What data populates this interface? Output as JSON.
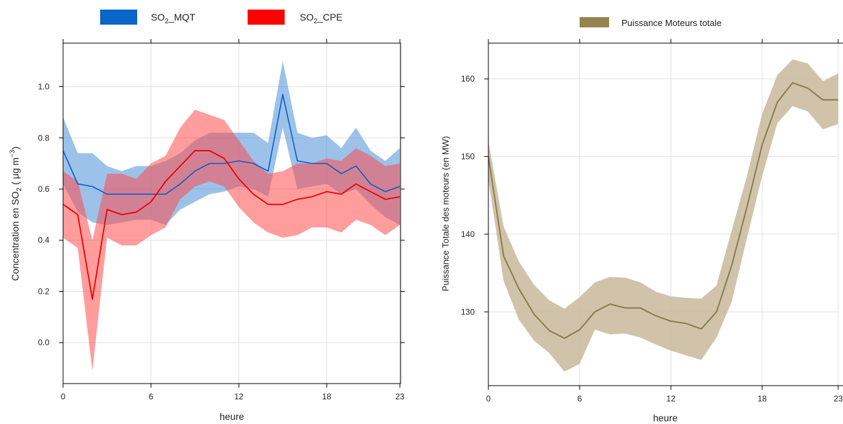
{
  "colors": {
    "mqt_band": "#4a90d9",
    "mqt_line": "#0a5cc7",
    "cpe_band": "#ff4d4d",
    "cpe_line": "#ee0000",
    "puissance_band": "#c8b89a",
    "puissance_line": "#8b7b4f",
    "puissance_legend": "#958451",
    "grid": "#e0e0e0"
  },
  "chart_data": [
    {
      "type": "area",
      "legend": {
        "placement": "top",
        "entries": [
          {
            "label_main": "SO",
            "label_sub": "2",
            "label_rest": "_MQT",
            "color": "#0a66c8"
          },
          {
            "label_main": "SO",
            "label_sub": "2",
            "label_rest": "_CPE",
            "color": "#ff0000"
          }
        ]
      },
      "xlabel": "heure",
      "ylabel": {
        "main": "Concentration en SO",
        "sub": "2",
        "rest": " ( μg m",
        "sup": "−3",
        "end": ")"
      },
      "xlim": [
        0,
        23
      ],
      "ylim": [
        -0.16,
        1.17
      ],
      "xticks": [
        "0",
        "6",
        "12",
        "18",
        "23"
      ],
      "xtick_values": [
        0,
        6,
        12,
        18,
        23
      ],
      "yticks": [
        "0.0",
        "0.2",
        "0.4",
        "0.6",
        "0.8",
        "1.0"
      ],
      "ytick_values": [
        0.0,
        0.2,
        0.4,
        0.6,
        0.8,
        1.0
      ],
      "grid": true,
      "x": [
        0,
        1,
        2,
        3,
        4,
        5,
        6,
        7,
        8,
        9,
        10,
        11,
        12,
        13,
        14,
        15,
        16,
        17,
        18,
        19,
        20,
        21,
        22,
        23
      ],
      "series": [
        {
          "name": "SO2_MQT",
          "values": [
            0.75,
            0.62,
            0.61,
            0.58,
            0.58,
            0.58,
            0.58,
            0.58,
            0.62,
            0.67,
            0.7,
            0.7,
            0.71,
            0.7,
            0.67,
            0.97,
            0.71,
            0.7,
            0.7,
            0.66,
            0.69,
            0.62,
            0.59,
            0.61
          ],
          "lower": [
            0.62,
            0.51,
            0.47,
            0.46,
            0.47,
            0.48,
            0.48,
            0.46,
            0.52,
            0.55,
            0.58,
            0.59,
            0.61,
            0.6,
            0.57,
            0.84,
            0.6,
            0.61,
            0.62,
            0.58,
            0.6,
            0.54,
            0.49,
            0.46
          ],
          "upper": [
            0.88,
            0.74,
            0.74,
            0.69,
            0.67,
            0.69,
            0.69,
            0.71,
            0.74,
            0.79,
            0.82,
            0.82,
            0.82,
            0.82,
            0.78,
            1.1,
            0.82,
            0.8,
            0.81,
            0.76,
            0.84,
            0.75,
            0.71,
            0.76
          ]
        },
        {
          "name": "SO2_CPE",
          "values": [
            0.54,
            0.5,
            0.17,
            0.52,
            0.5,
            0.51,
            0.55,
            0.63,
            0.69,
            0.75,
            0.75,
            0.72,
            0.64,
            0.58,
            0.54,
            0.54,
            0.56,
            0.57,
            0.59,
            0.58,
            0.62,
            0.59,
            0.56,
            0.57
          ],
          "lower": [
            0.41,
            0.37,
            -0.11,
            0.41,
            0.38,
            0.38,
            0.42,
            0.45,
            0.56,
            0.61,
            0.63,
            0.61,
            0.53,
            0.47,
            0.43,
            0.41,
            0.42,
            0.45,
            0.45,
            0.43,
            0.48,
            0.46,
            0.42,
            0.46
          ],
          "upper": [
            0.67,
            0.63,
            0.4,
            0.66,
            0.66,
            0.64,
            0.7,
            0.73,
            0.84,
            0.91,
            0.89,
            0.87,
            0.79,
            0.71,
            0.66,
            0.67,
            0.7,
            0.7,
            0.72,
            0.71,
            0.76,
            0.73,
            0.69,
            0.7
          ]
        }
      ]
    },
    {
      "type": "area",
      "legend": {
        "placement": "top",
        "entries": [
          {
            "label": "Puissance Moteurs totale",
            "color": "#958451"
          }
        ]
      },
      "xlabel": "heure",
      "ylabel": "Puissance Totale des moteurs (en MW)",
      "xlim": [
        0,
        23
      ],
      "ylim": [
        120.5,
        164.6
      ],
      "xticks": [
        "0",
        "6",
        "12",
        "18",
        "23"
      ],
      "xtick_values": [
        0,
        6,
        12,
        18,
        23
      ],
      "yticks": [
        "130",
        "140",
        "150",
        "160"
      ],
      "ytick_values": [
        130,
        140,
        150,
        160
      ],
      "grid": true,
      "x": [
        0,
        1,
        2,
        3,
        4,
        5,
        6,
        7,
        8,
        9,
        10,
        11,
        12,
        13,
        14,
        15,
        16,
        17,
        18,
        19,
        20,
        21,
        22,
        23
      ],
      "series": [
        {
          "name": "Puissance Moteurs totale",
          "values": [
            150.0,
            137.2,
            133.0,
            129.7,
            127.6,
            126.6,
            127.7,
            130.0,
            131.0,
            130.5,
            130.5,
            129.5,
            128.8,
            128.5,
            127.8,
            130.0,
            136.0,
            143.5,
            151.5,
            157.0,
            159.5,
            158.8,
            157.3,
            157.3
          ],
          "lower": [
            147.0,
            134.0,
            129.0,
            126.3,
            124.7,
            122.3,
            123.3,
            127.7,
            127.1,
            127.2,
            126.7,
            125.8,
            125.0,
            124.4,
            123.8,
            126.7,
            131.3,
            139.5,
            147.5,
            154.3,
            156.5,
            155.8,
            153.5,
            154.2
          ],
          "upper": [
            152.0,
            141.0,
            136.5,
            133.5,
            131.5,
            130.4,
            131.9,
            133.8,
            134.5,
            134.4,
            133.8,
            132.6,
            132.0,
            131.8,
            131.7,
            133.4,
            140.5,
            147.5,
            155.5,
            160.5,
            162.5,
            162.0,
            159.7,
            160.7
          ]
        }
      ]
    }
  ]
}
